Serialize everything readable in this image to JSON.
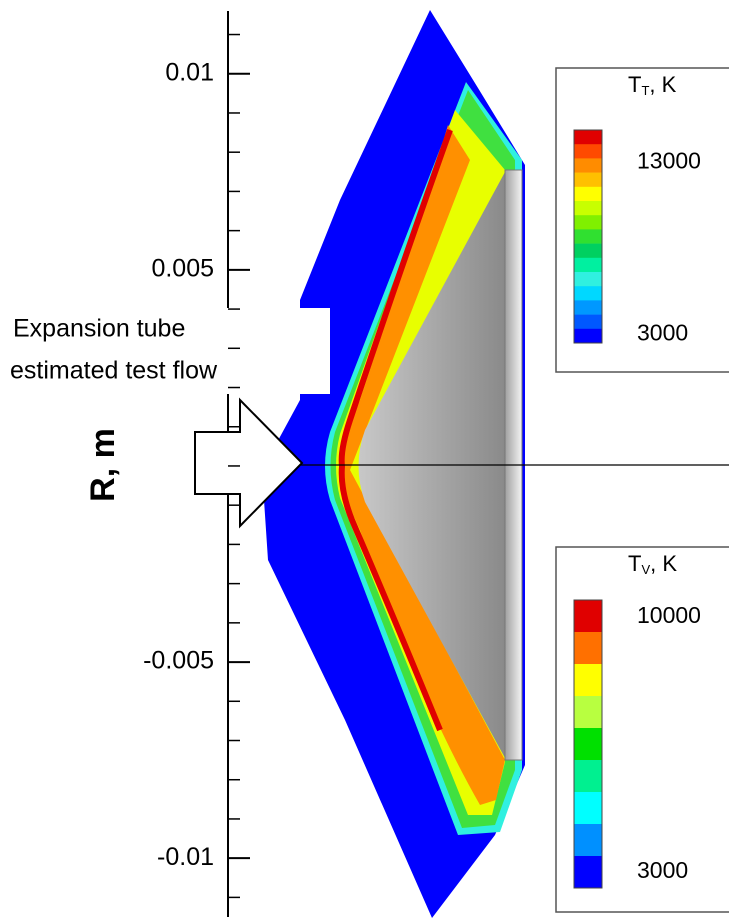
{
  "chart_data": {
    "type": "contour",
    "ylabel": "R, m",
    "ylim": [
      -0.0115,
      0.0116
    ],
    "yticks": [
      0.01,
      0.005,
      -0.005,
      -0.01
    ],
    "minor_ticks": [
      0.011,
      0.009,
      0.008,
      0.007,
      0.006,
      0.004,
      0.003,
      0.002,
      0.001,
      0,
      -0.001,
      -0.002,
      -0.003,
      -0.004,
      -0.006,
      -0.007,
      -0.008,
      -0.009,
      -0.011
    ],
    "annotation": [
      "Expansion tube",
      "estimated test flow"
    ],
    "colorbars": [
      {
        "title": "T",
        "title_sub": "T",
        "title_unit": ", K",
        "colors": [
          "#e00000",
          "#ff4a00",
          "#ff8c00",
          "#ffc000",
          "#ffff00",
          "#c8ff00",
          "#80f000",
          "#30e030",
          "#00d060",
          "#00f0a0",
          "#30f0e0",
          "#00d8ff",
          "#0098ff",
          "#0058ff",
          "#0000ff"
        ],
        "clim": [
          2500,
          14900
        ],
        "ticks": [
          13000,
          3000
        ]
      },
      {
        "title": "T",
        "title_sub": "V",
        "title_unit": ", K",
        "colors": [
          "#e00000",
          "#ff7000",
          "#ffff00",
          "#b8ff40",
          "#00e000",
          "#00f090",
          "#00ffff",
          "#0090ff",
          "#0000ff"
        ],
        "clim": [
          2560,
          10470
        ],
        "ticks": [
          10000,
          3000
        ]
      }
    ]
  }
}
